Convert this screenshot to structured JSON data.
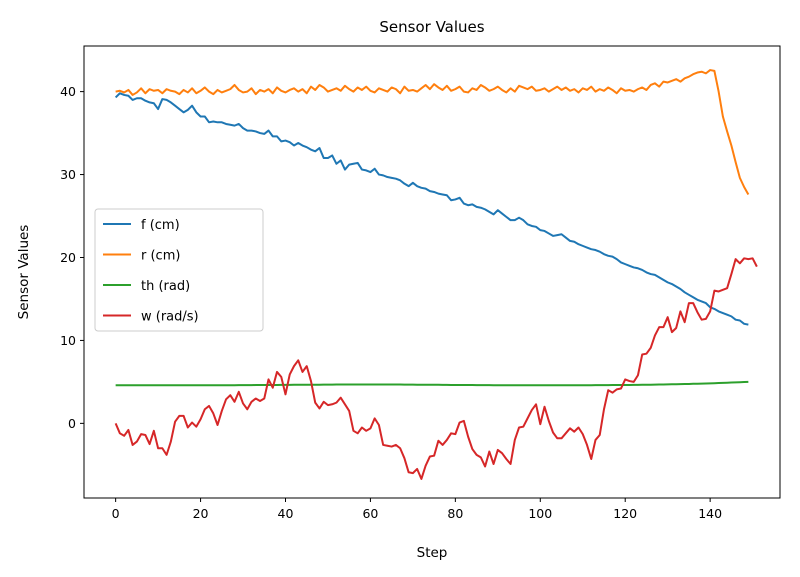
{
  "chart_data": {
    "type": "line",
    "title": "Sensor Values",
    "xlabel": "Step",
    "ylabel": "Sensor Values",
    "xlim": [
      -7.45,
      156.45
    ],
    "ylim": [
      -9,
      45.5
    ],
    "xticks": [
      0,
      20,
      40,
      60,
      80,
      100,
      120,
      140
    ],
    "yticks": [
      0,
      10,
      20,
      30,
      40
    ],
    "grid": false,
    "legend_position": "center-left",
    "x": "integer steps 0 to 149",
    "series": [
      {
        "name": "f (cm)",
        "color": "#1f77b4",
        "values": [
          39.3,
          39.8,
          39.6,
          39.5,
          39.0,
          39.2,
          39.2,
          38.9,
          38.7,
          38.6,
          37.9,
          39.1,
          39.0,
          38.7,
          38.3,
          37.9,
          37.5,
          37.8,
          38.3,
          37.5,
          37.0,
          37.0,
          36.3,
          36.4,
          36.3,
          36.3,
          36.1,
          36.0,
          35.9,
          36.1,
          35.6,
          35.3,
          35.3,
          35.2,
          35.0,
          34.9,
          35.3,
          34.6,
          34.6,
          34.0,
          34.1,
          33.9,
          33.5,
          33.8,
          33.5,
          33.3,
          33.0,
          32.8,
          33.2,
          32.0,
          32.0,
          32.3,
          31.3,
          31.7,
          30.6,
          31.2,
          31.3,
          31.4,
          30.6,
          30.5,
          30.3,
          30.7,
          30.0,
          29.9,
          29.7,
          29.6,
          29.5,
          29.3,
          28.9,
          28.6,
          29.0,
          28.6,
          28.4,
          28.3,
          28.0,
          27.9,
          27.7,
          27.6,
          27.5,
          26.9,
          27.0,
          27.2,
          26.5,
          26.3,
          26.4,
          26.1,
          26.0,
          25.8,
          25.5,
          25.2,
          25.7,
          25.3,
          24.9,
          24.5,
          24.5,
          24.8,
          24.5,
          24.0,
          23.8,
          23.7,
          23.3,
          23.2,
          22.9,
          22.6,
          22.7,
          22.8,
          22.4,
          22.0,
          21.9,
          21.6,
          21.4,
          21.2,
          21.0,
          20.9,
          20.7,
          20.4,
          20.2,
          20.1,
          19.8,
          19.4,
          19.2,
          19.0,
          18.8,
          18.7,
          18.5,
          18.2,
          18.0,
          17.9,
          17.6,
          17.3,
          17.0,
          16.8,
          16.5,
          16.2,
          15.8,
          15.5,
          15.2,
          14.9,
          14.7,
          14.5,
          14.0,
          13.8,
          13.5,
          13.3,
          13.1,
          12.9,
          12.5,
          12.4,
          12.0,
          11.9
        ]
      },
      {
        "name": "r (cm)",
        "color": "#ff7f0e",
        "values": [
          40.0,
          40.1,
          39.9,
          40.2,
          39.6,
          39.9,
          40.4,
          39.8,
          40.3,
          40.1,
          40.2,
          39.8,
          40.3,
          40.1,
          40.0,
          39.7,
          40.2,
          39.9,
          40.4,
          39.8,
          40.1,
          40.5,
          40.0,
          39.7,
          40.2,
          39.9,
          40.1,
          40.3,
          40.8,
          40.2,
          39.9,
          40.0,
          40.4,
          39.7,
          40.2,
          40.0,
          40.3,
          39.8,
          40.5,
          40.1,
          39.9,
          40.2,
          40.4,
          40.0,
          40.3,
          39.8,
          40.6,
          40.2,
          40.8,
          40.5,
          40.0,
          40.2,
          40.4,
          40.1,
          40.7,
          40.3,
          40.0,
          40.5,
          40.2,
          40.6,
          40.1,
          39.9,
          40.4,
          40.2,
          40.0,
          40.5,
          40.3,
          39.8,
          40.6,
          40.1,
          40.2,
          40.0,
          40.4,
          40.8,
          40.3,
          40.9,
          40.5,
          40.2,
          40.7,
          40.1,
          40.3,
          40.6,
          40.0,
          39.9,
          40.4,
          40.2,
          40.8,
          40.5,
          40.1,
          40.3,
          40.6,
          40.2,
          39.9,
          40.4,
          40.0,
          40.7,
          40.5,
          40.3,
          40.6,
          40.1,
          40.2,
          40.4,
          40.0,
          40.3,
          40.6,
          40.2,
          40.5,
          40.1,
          40.3,
          39.9,
          40.4,
          40.2,
          40.6,
          40.0,
          40.3,
          40.1,
          40.5,
          40.2,
          39.8,
          40.4,
          40.1,
          40.2,
          40.0,
          40.3,
          40.5,
          40.2,
          40.8,
          41.0,
          40.6,
          41.2,
          41.1,
          41.3,
          41.5,
          41.2,
          41.6,
          41.8,
          42.1,
          42.3,
          42.4,
          42.2,
          42.6,
          42.5,
          40.0,
          37.0,
          35.2,
          33.5,
          31.5,
          29.6,
          28.5,
          27.6
        ]
      },
      {
        "name": "th (rad)",
        "color": "#2ca02c",
        "values": [
          4.6,
          4.6,
          4.6,
          4.6,
          4.6,
          4.6,
          4.6,
          4.6,
          4.6,
          4.6,
          4.6,
          4.6,
          4.6,
          4.6,
          4.6,
          4.6,
          4.6,
          4.6,
          4.6,
          4.6,
          4.6,
          4.6,
          4.6,
          4.6,
          4.6,
          4.6,
          4.6,
          4.6,
          4.6,
          4.61,
          4.61,
          4.61,
          4.61,
          4.62,
          4.62,
          4.62,
          4.63,
          4.63,
          4.63,
          4.64,
          4.64,
          4.64,
          4.65,
          4.65,
          4.65,
          4.66,
          4.66,
          4.66,
          4.66,
          4.67,
          4.67,
          4.67,
          4.68,
          4.68,
          4.68,
          4.68,
          4.68,
          4.68,
          4.68,
          4.68,
          4.68,
          4.68,
          4.68,
          4.68,
          4.68,
          4.68,
          4.68,
          4.68,
          4.67,
          4.67,
          4.67,
          4.66,
          4.66,
          4.66,
          4.65,
          4.65,
          4.65,
          4.64,
          4.64,
          4.63,
          4.63,
          4.63,
          4.62,
          4.62,
          4.62,
          4.61,
          4.61,
          4.61,
          4.61,
          4.6,
          4.6,
          4.6,
          4.6,
          4.6,
          4.6,
          4.6,
          4.6,
          4.6,
          4.6,
          4.6,
          4.6,
          4.6,
          4.6,
          4.6,
          4.6,
          4.6,
          4.6,
          4.6,
          4.6,
          4.6,
          4.6,
          4.6,
          4.6,
          4.61,
          4.61,
          4.61,
          4.61,
          4.62,
          4.62,
          4.62,
          4.63,
          4.63,
          4.64,
          4.64,
          4.65,
          4.66,
          4.66,
          4.67,
          4.68,
          4.69,
          4.7,
          4.71,
          4.72,
          4.73,
          4.74,
          4.75,
          4.77,
          4.78,
          4.79,
          4.81,
          4.82,
          4.84,
          4.86,
          4.88,
          4.9,
          4.92,
          4.94,
          4.96,
          4.98,
          5.0
        ]
      },
      {
        "name": "w (rad/s)",
        "color": "#d62728",
        "values": [
          0.0,
          -1.2,
          -1.5,
          -0.8,
          -2.6,
          -2.2,
          -1.3,
          -1.4,
          -2.5,
          -0.9,
          -3.0,
          -3.0,
          -3.8,
          -2.2,
          0.2,
          0.9,
          0.9,
          -0.5,
          0.1,
          -0.4,
          0.5,
          1.7,
          2.1,
          1.2,
          -0.2,
          1.5,
          2.9,
          3.4,
          2.6,
          3.8,
          2.4,
          1.7,
          2.6,
          3.0,
          2.7,
          3.0,
          5.3,
          4.3,
          6.2,
          5.6,
          3.5,
          5.9,
          6.9,
          7.6,
          6.2,
          6.9,
          5.1,
          2.5,
          1.8,
          2.6,
          2.2,
          2.3,
          2.5,
          3.1,
          2.3,
          1.5,
          -0.9,
          -1.2,
          -0.5,
          -0.9,
          -0.6,
          0.6,
          -0.2,
          -2.6,
          -2.7,
          -2.8,
          -2.6,
          -3.0,
          -4.2,
          -5.9,
          -6.0,
          -5.5,
          -6.7,
          -5.1,
          -4.0,
          -3.9,
          -2.1,
          -2.6,
          -2.0,
          -1.2,
          -1.3,
          0.1,
          0.3,
          -1.6,
          -3.1,
          -3.8,
          -4.1,
          -5.2,
          -3.4,
          -4.9,
          -3.2,
          -3.6,
          -4.3,
          -4.9,
          -2.0,
          -0.5,
          -0.4,
          0.6,
          1.6,
          2.3,
          -0.1,
          2.0,
          0.3,
          -1.1,
          -1.8,
          -1.8,
          -1.2,
          -0.6,
          -1.0,
          -0.5,
          -1.3,
          -2.6,
          -4.3,
          -2.0,
          -1.4,
          1.7,
          4.0,
          3.7,
          4.1,
          4.2,
          5.3,
          5.1,
          5.0,
          5.8,
          8.3,
          8.4,
          9.1,
          10.6,
          11.6,
          11.6,
          12.8,
          11.0,
          11.5,
          13.5,
          12.2,
          14.5,
          14.5,
          13.4,
          12.5,
          12.6,
          13.5,
          16.0,
          15.9,
          16.1,
          16.3,
          18.0,
          19.8,
          19.3,
          19.9,
          19.8,
          19.9,
          18.9
        ]
      }
    ]
  }
}
